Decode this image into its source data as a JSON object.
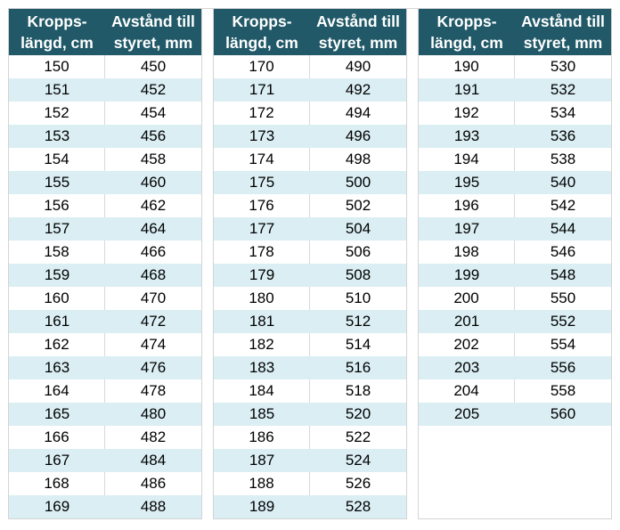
{
  "colors": {
    "header_bg": "#215968",
    "header_text": "#ffffff",
    "band_blue": "#daeef3",
    "row_white": "#ffffff",
    "border": "#d4d4d4",
    "divider": "#d9d9d9",
    "cell_text": "#000000"
  },
  "header": {
    "col1_line1": "Kropps-",
    "col1_line2": "längd, cm",
    "col2_line1": "Avstånd till",
    "col2_line2": "styret, mm"
  },
  "tables": [
    {
      "rows": [
        [
          150,
          450
        ],
        [
          151,
          452
        ],
        [
          152,
          454
        ],
        [
          153,
          456
        ],
        [
          154,
          458
        ],
        [
          155,
          460
        ],
        [
          156,
          462
        ],
        [
          157,
          464
        ],
        [
          158,
          466
        ],
        [
          159,
          468
        ],
        [
          160,
          470
        ],
        [
          161,
          472
        ],
        [
          162,
          474
        ],
        [
          163,
          476
        ],
        [
          164,
          478
        ],
        [
          165,
          480
        ],
        [
          166,
          482
        ],
        [
          167,
          484
        ],
        [
          168,
          486
        ],
        [
          169,
          488
        ]
      ]
    },
    {
      "rows": [
        [
          170,
          490
        ],
        [
          171,
          492
        ],
        [
          172,
          494
        ],
        [
          173,
          496
        ],
        [
          174,
          498
        ],
        [
          175,
          500
        ],
        [
          176,
          502
        ],
        [
          177,
          504
        ],
        [
          178,
          506
        ],
        [
          179,
          508
        ],
        [
          180,
          510
        ],
        [
          181,
          512
        ],
        [
          182,
          514
        ],
        [
          183,
          516
        ],
        [
          184,
          518
        ],
        [
          185,
          520
        ],
        [
          186,
          522
        ],
        [
          187,
          524
        ],
        [
          188,
          526
        ],
        [
          189,
          528
        ]
      ]
    },
    {
      "rows": [
        [
          190,
          530
        ],
        [
          191,
          532
        ],
        [
          192,
          534
        ],
        [
          193,
          536
        ],
        [
          194,
          538
        ],
        [
          195,
          540
        ],
        [
          196,
          542
        ],
        [
          197,
          544
        ],
        [
          198,
          546
        ],
        [
          199,
          548
        ],
        [
          200,
          550
        ],
        [
          201,
          552
        ],
        [
          202,
          554
        ],
        [
          203,
          556
        ],
        [
          204,
          558
        ],
        [
          205,
          560
        ]
      ]
    }
  ]
}
